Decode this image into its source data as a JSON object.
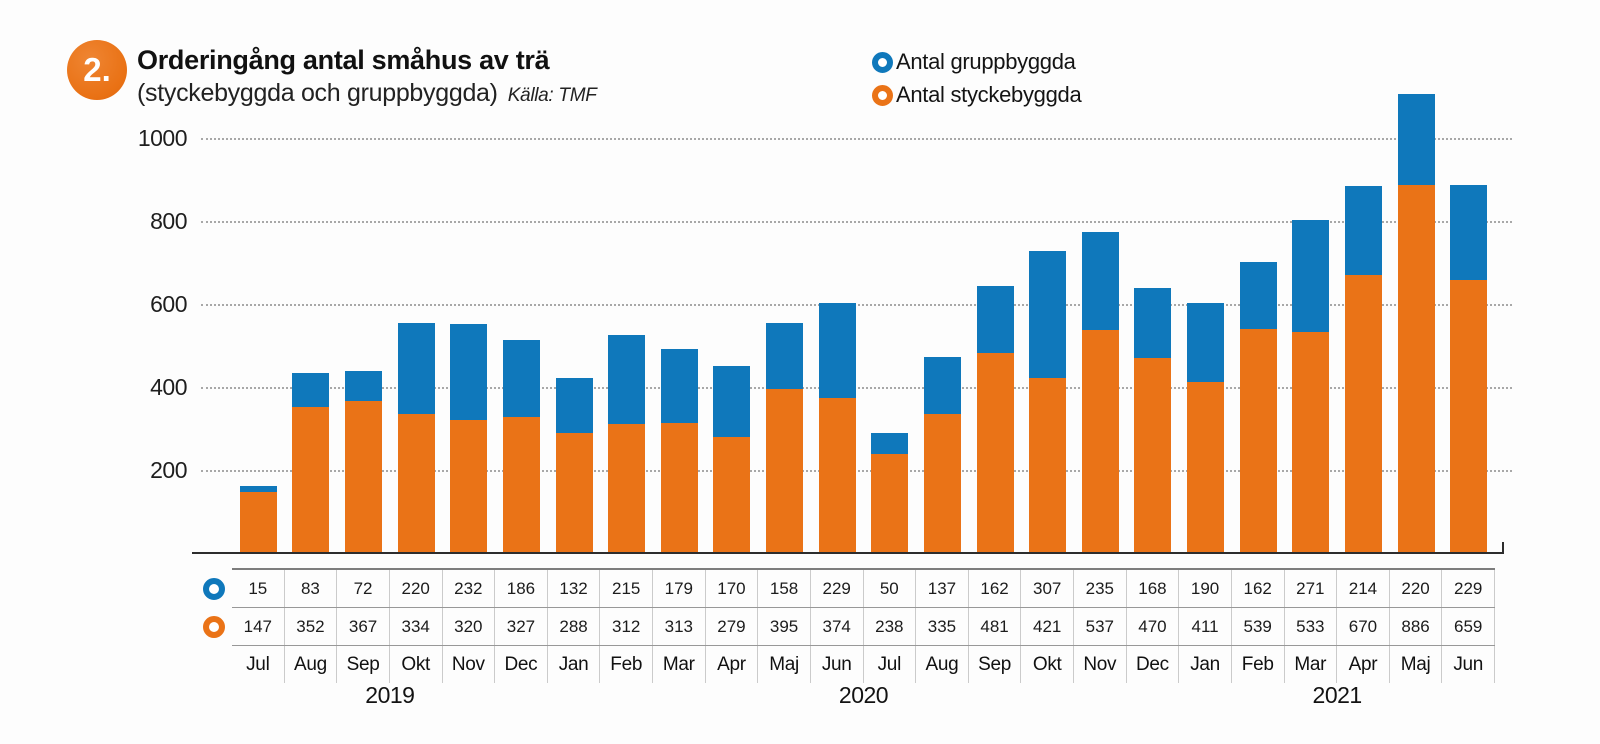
{
  "badge": {
    "number": "2."
  },
  "header": {
    "title": "Orderingång antal småhus av trä",
    "subtitle": "(styckebyggda och gruppbyggda)",
    "source": "Källa: TMF"
  },
  "legend": {
    "items": [
      {
        "key": "gruppbyggda",
        "label": "Antal gruppbyggda",
        "color": "#0f78bb"
      },
      {
        "key": "styckebyggda",
        "label": "Antal styckebyggda",
        "color": "#ea7317"
      }
    ]
  },
  "colors": {
    "gruppbyggda_blue": "#0f78bb",
    "styckebyggda_orange": "#ea7317",
    "grid_gray": "#a8a8a8",
    "axis_dark": "#2d2d2d"
  },
  "chart_data": {
    "type": "bar",
    "stacked": true,
    "title": "Orderingång antal småhus av trä (styckebyggda och gruppbyggda)",
    "source": "Källa: TMF",
    "categories": [
      "Jul",
      "Aug",
      "Sep",
      "Okt",
      "Nov",
      "Dec",
      "Jan",
      "Feb",
      "Mar",
      "Apr",
      "Maj",
      "Jun",
      "Jul",
      "Aug",
      "Sep",
      "Okt",
      "Nov",
      "Dec",
      "Jan",
      "Feb",
      "Mar",
      "Apr",
      "Maj",
      "Jun"
    ],
    "year_groups": [
      {
        "label": "2019",
        "start_index": 0,
        "months": 6
      },
      {
        "label": "2020",
        "start_index": 6,
        "months": 12
      },
      {
        "label": "2021",
        "start_index": 18,
        "months": 6
      }
    ],
    "series": [
      {
        "name": "Antal gruppbyggda",
        "key": "gruppbyggda",
        "color": "#0f78bb",
        "stack_position": "top",
        "values": [
          15,
          83,
          72,
          220,
          232,
          186,
          132,
          215,
          179,
          170,
          158,
          229,
          50,
          137,
          162,
          307,
          235,
          168,
          190,
          162,
          271,
          214,
          220,
          229
        ]
      },
      {
        "name": "Antal styckebyggda",
        "key": "styckebyggda",
        "color": "#ea7317",
        "stack_position": "bottom",
        "values": [
          147,
          352,
          367,
          334,
          320,
          327,
          288,
          312,
          313,
          279,
          395,
          374,
          238,
          335,
          481,
          421,
          537,
          470,
          411,
          539,
          533,
          670,
          886,
          659
        ]
      }
    ],
    "ylim": [
      0,
      1100
    ],
    "yticks": [
      200,
      400,
      600,
      800,
      1000
    ],
    "grid": "horizontal-dotted",
    "legend_position": "top-right"
  }
}
